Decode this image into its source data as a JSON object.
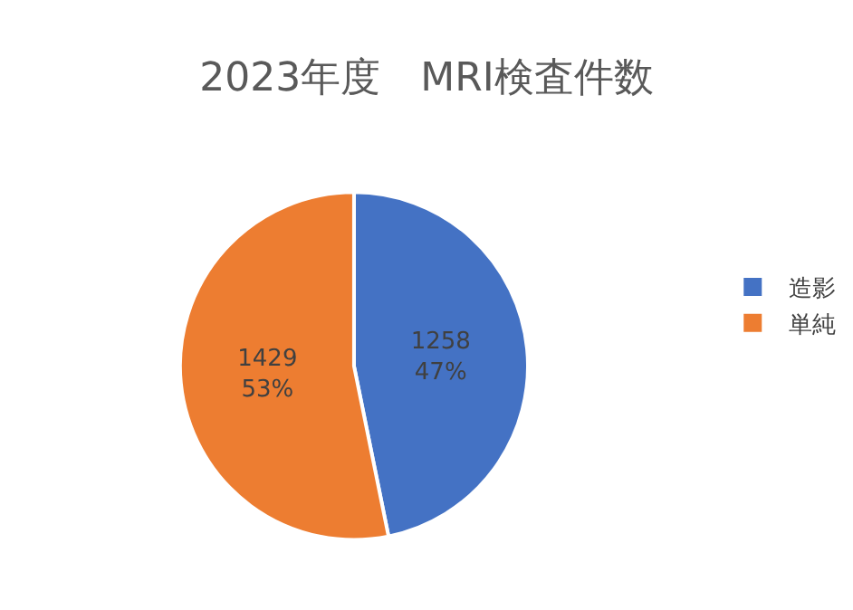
{
  "chart_data": {
    "type": "pie",
    "title": "2023年度　MRI検査件数",
    "categories": [
      "造影",
      "単純"
    ],
    "values": [
      1258,
      1429
    ],
    "colors": [
      "#4472c4",
      "#ed7d31"
    ],
    "value_labels": [
      "1258\n47%",
      "1429\n53%"
    ],
    "legend": "right"
  }
}
